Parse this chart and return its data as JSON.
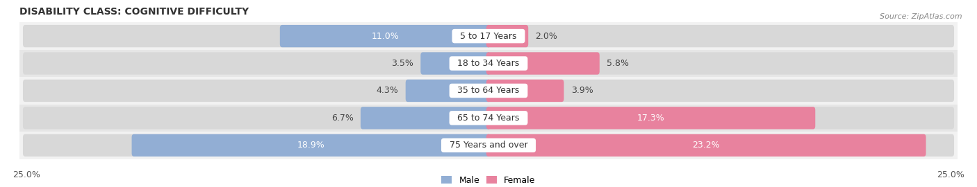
{
  "title": "DISABILITY CLASS: COGNITIVE DIFFICULTY",
  "source": "Source: ZipAtlas.com",
  "categories": [
    "5 to 17 Years",
    "18 to 34 Years",
    "35 to 64 Years",
    "65 to 74 Years",
    "75 Years and over"
  ],
  "male_values": [
    11.0,
    3.5,
    4.3,
    6.7,
    18.9
  ],
  "female_values": [
    2.0,
    5.8,
    3.9,
    17.3,
    23.2
  ],
  "male_color": "#92aed4",
  "female_color": "#e8829e",
  "row_bg_even": "#f2f2f2",
  "row_bg_odd": "#e6e6e6",
  "max_val": 25.0,
  "bar_height": 0.58,
  "label_fontsize": 9,
  "title_fontsize": 10,
  "source_fontsize": 8,
  "legend_male": "Male",
  "legend_female": "Female"
}
